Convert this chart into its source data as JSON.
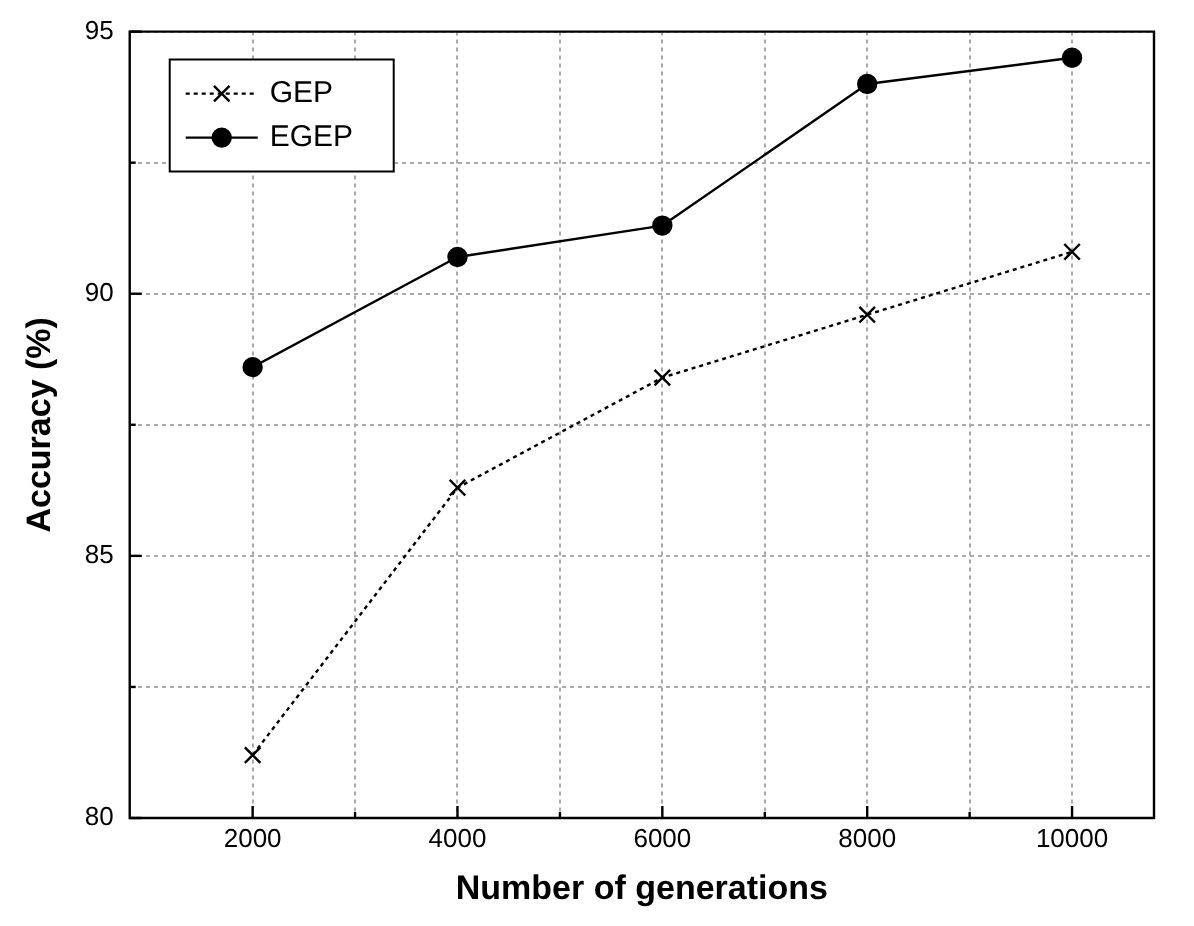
{
  "chart_data": {
    "type": "line",
    "xlabel": "Number of generations",
    "ylabel": "Accuracy (%)",
    "x": [
      2000,
      4000,
      6000,
      8000,
      10000
    ],
    "series": [
      {
        "name": "GEP",
        "color": "#000000",
        "values": [
          81.2,
          86.3,
          88.4,
          89.6,
          90.8
        ],
        "marker": "cross",
        "line_style": "dotted"
      },
      {
        "name": "EGEP",
        "color": "#000000",
        "values": [
          88.6,
          90.7,
          91.3,
          94.0,
          94.5
        ],
        "marker": "circle",
        "line_style": "solid"
      }
    ],
    "xlim": [
      800,
      10800
    ],
    "ylim": [
      80,
      95
    ],
    "xticks": [
      2000,
      {
        "value": 3000,
        "label": null
      },
      4000,
      {
        "value": 5000,
        "label": null
      },
      6000,
      {
        "value": 7000,
        "label": null
      },
      8000,
      {
        "value": 9000,
        "label": null
      },
      10000
    ],
    "yticks": [
      80,
      {
        "value": 82.5,
        "label": null
      },
      85,
      {
        "value": 87.5,
        "label": null
      },
      90,
      {
        "value": 92.5,
        "label": null
      },
      95
    ],
    "grid": true,
    "legend": "top left"
  }
}
